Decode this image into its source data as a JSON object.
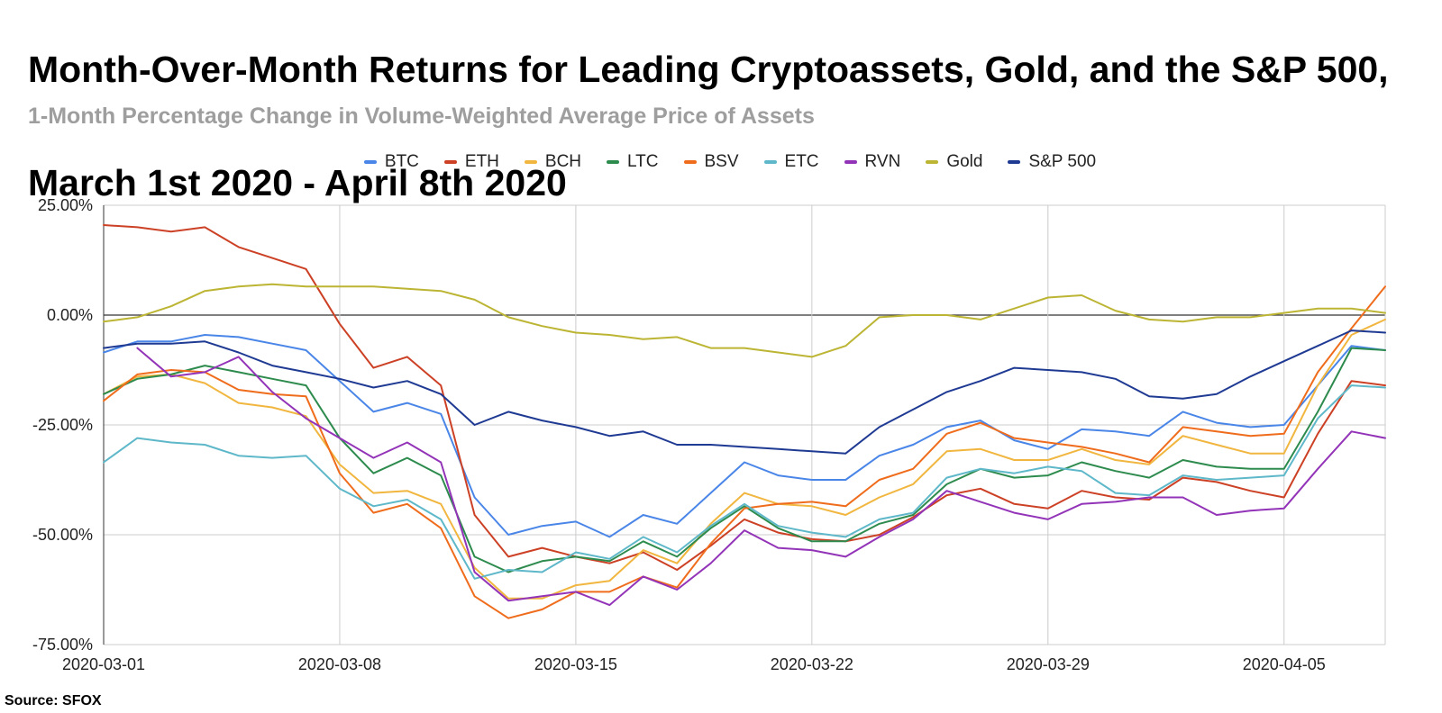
{
  "source": "Source: SFOX",
  "chart_data": {
    "type": "line",
    "title": "Month-Over-Month Returns for Leading Cryptoassets, Gold, and the S&P 500, March 1st 2020 - April 8th 2020",
    "title_lines": [
      "Month-Over-Month Returns for Leading Cryptoassets, Gold, and the S&P 500,",
      "March 1st 2020 - April 8th 2020"
    ],
    "subtitle": "1-Month Percentage Change in Volume-Weighted Average Price of Assets",
    "xlabel": "",
    "ylabel": "",
    "x_start": "2020-03-01",
    "x_end": "2020-04-08",
    "x_tick_labels": [
      "2020-03-01",
      "2020-03-08",
      "2020-03-15",
      "2020-03-22",
      "2020-03-29",
      "2020-04-05"
    ],
    "x_tick_days": [
      0,
      7,
      14,
      21,
      28,
      35
    ],
    "y_ticks": [
      25,
      0,
      -25,
      -50,
      -75
    ],
    "y_tick_labels": [
      "25.00%",
      "0.00%",
      "-25.00%",
      "-50.00%",
      "-75.00%"
    ],
    "ylim": [
      -75,
      25
    ],
    "xlim_days": [
      0,
      38
    ],
    "legend_position": "top-center",
    "grid": true,
    "series": [
      {
        "name": "BTC",
        "color": "#4a86e8",
        "x": [
          0,
          1,
          2,
          3,
          4,
          5,
          6,
          7,
          8,
          9,
          10,
          11,
          12,
          13,
          14,
          15,
          16,
          17,
          18,
          19,
          20,
          21,
          22,
          23,
          24,
          25,
          26,
          27,
          28,
          29,
          30,
          31,
          32,
          33,
          34,
          35,
          36,
          37,
          38
        ],
        "values": [
          -8.5,
          -6,
          -6,
          -4.5,
          -5,
          -6.5,
          -8,
          -15,
          -22,
          -20,
          -22.5,
          -41.5,
          -50,
          -48,
          -47,
          -50.5,
          -45.5,
          -47.5,
          -40.5,
          -33.5,
          -36.5,
          -37.5,
          -37.5,
          -32,
          -29.5,
          -25.5,
          -24,
          -28.5,
          -30.5,
          -26,
          -26.5,
          -27.5,
          -22,
          -24.5,
          -25.5,
          -25,
          -16,
          -7,
          -8
        ]
      },
      {
        "name": "ETH",
        "color": "#cc4125",
        "x": [
          0,
          1,
          2,
          3,
          4,
          5,
          6,
          7,
          8,
          9,
          10,
          11,
          12,
          13,
          14,
          15,
          16,
          17,
          18,
          19,
          20,
          21,
          22,
          23,
          24,
          25,
          26,
          27,
          28,
          29,
          30,
          31,
          32,
          33,
          34,
          35,
          36,
          37,
          38
        ],
        "values": [
          20.5,
          20,
          19,
          20,
          15.5,
          13,
          10.5,
          -2,
          -12,
          -9.5,
          -16,
          -45.5,
          -55,
          -53,
          -55,
          -56.5,
          -54,
          -58,
          -52.5,
          -46.5,
          -49.5,
          -51,
          -51.5,
          -50,
          -46,
          -41,
          -39.5,
          -43,
          -44,
          -40,
          -41.5,
          -42,
          -37,
          -38,
          -40,
          -41.5,
          -27,
          -15,
          -16
        ]
      },
      {
        "name": "BCH",
        "color": "#f1b63f",
        "x": [
          0,
          1,
          2,
          3,
          4,
          5,
          6,
          7,
          8,
          9,
          10,
          11,
          12,
          13,
          14,
          15,
          16,
          17,
          18,
          19,
          20,
          21,
          22,
          23,
          24,
          25,
          26,
          27,
          28,
          29,
          30,
          31,
          32,
          33,
          34,
          35,
          36,
          37,
          38
        ],
        "values": [
          -18,
          -14,
          -13.5,
          -15.5,
          -20,
          -21,
          -23,
          -34,
          -40.5,
          -40,
          -43,
          -57.5,
          -64.5,
          -64.5,
          -61.5,
          -60.5,
          -53.5,
          -56.5,
          -47.5,
          -40.5,
          -43,
          -43.5,
          -45.5,
          -41.5,
          -38.5,
          -31,
          -30.5,
          -33,
          -33,
          -30.5,
          -33,
          -34,
          -27.5,
          -29.5,
          -31.5,
          -31.5,
          -16,
          -4.5,
          -1
        ]
      },
      {
        "name": "LTC",
        "color": "#2e8b4e",
        "x": [
          0,
          1,
          2,
          3,
          4,
          5,
          6,
          7,
          8,
          9,
          10,
          11,
          12,
          13,
          14,
          15,
          16,
          17,
          18,
          19,
          20,
          21,
          22,
          23,
          24,
          25,
          26,
          27,
          28,
          29,
          30,
          31,
          32,
          33,
          34,
          35,
          36,
          37,
          38
        ],
        "values": [
          -18,
          -14.5,
          -13.5,
          -11.5,
          -13,
          -14.5,
          -16,
          -28,
          -36,
          -32.5,
          -36.5,
          -55,
          -58.5,
          -56,
          -55,
          -56,
          -51.5,
          -55,
          -48.5,
          -43.5,
          -48.5,
          -51.5,
          -51.5,
          -47.5,
          -45.5,
          -38.5,
          -35,
          -37,
          -36.5,
          -33.5,
          -35.5,
          -37,
          -33,
          -34.5,
          -35,
          -35,
          -22,
          -7.5,
          -8
        ]
      },
      {
        "name": "BSV",
        "color": "#ef6c1c",
        "x": [
          0,
          1,
          2,
          3,
          4,
          5,
          6,
          7,
          8,
          9,
          10,
          11,
          12,
          13,
          14,
          15,
          16,
          17,
          18,
          19,
          20,
          21,
          22,
          23,
          24,
          25,
          26,
          27,
          28,
          29,
          30,
          31,
          32,
          33,
          34,
          35,
          36,
          37,
          38
        ],
        "values": [
          -19.5,
          -13.5,
          -12.5,
          -13,
          -17,
          -18,
          -18.5,
          -36,
          -45,
          -43,
          -48.5,
          -64,
          -69,
          -67,
          -63,
          -63,
          -59.5,
          -62,
          -52,
          -44,
          -43,
          -42.5,
          -43.5,
          -37.5,
          -35,
          -27,
          -24.5,
          -28,
          -29,
          -30,
          -31.5,
          -33.5,
          -25.5,
          -26.5,
          -27.5,
          -27,
          -13,
          -3,
          6.5
        ]
      },
      {
        "name": "ETC",
        "color": "#5eb8c9",
        "x": [
          0,
          1,
          2,
          3,
          4,
          5,
          6,
          7,
          8,
          9,
          10,
          11,
          12,
          13,
          14,
          15,
          16,
          17,
          18,
          19,
          20,
          21,
          22,
          23,
          24,
          25,
          26,
          27,
          28,
          29,
          30,
          31,
          32,
          33,
          34,
          35,
          36,
          37,
          38
        ],
        "values": [
          -33.5,
          -28,
          -29,
          -29.5,
          -32,
          -32.5,
          -32,
          -39.5,
          -43.5,
          -42,
          -46.5,
          -60,
          -58,
          -58.5,
          -54,
          -55.5,
          -50.5,
          -54,
          -48,
          -43,
          -48,
          -49.5,
          -50.5,
          -46.5,
          -45,
          -37,
          -35,
          -36,
          -34.5,
          -35.5,
          -40.5,
          -41,
          -36.5,
          -37.5,
          -37,
          -36.5,
          -23.5,
          -16,
          -16.5
        ]
      },
      {
        "name": "RVN",
        "color": "#9334b8",
        "x": [
          1,
          2,
          3,
          4,
          5,
          6,
          7,
          8,
          9,
          10,
          11,
          12,
          13,
          14,
          15,
          16,
          17,
          18,
          19,
          20,
          21,
          22,
          23,
          24,
          25,
          26,
          27,
          28,
          29,
          30,
          31,
          32,
          33,
          34,
          35,
          36,
          37,
          38
        ],
        "values": [
          -7.5,
          -14,
          -13,
          -9.5,
          -17.5,
          -23.5,
          -28,
          -32.5,
          -29,
          -33.5,
          -58.5,
          -65,
          -64,
          -63,
          -66,
          -59.5,
          -62.5,
          -56.5,
          -49,
          -53,
          -53.5,
          -55,
          -50.5,
          -46.5,
          -40,
          -42.5,
          -45,
          -46.5,
          -43,
          -42.5,
          -41.5,
          -41.5,
          -45.5,
          -44.5,
          -44,
          -35,
          -26.5,
          -28
        ]
      },
      {
        "name": "Gold",
        "color": "#bcb534",
        "x": [
          0,
          1,
          2,
          3,
          4,
          5,
          6,
          7,
          8,
          9,
          10,
          11,
          12,
          13,
          14,
          15,
          16,
          17,
          18,
          19,
          20,
          21,
          22,
          23,
          24,
          25,
          26,
          27,
          28,
          29,
          30,
          31,
          32,
          33,
          34,
          35,
          36,
          37,
          38
        ],
        "values": [
          -1.5,
          -0.5,
          2,
          5.5,
          6.5,
          7,
          6.5,
          6.5,
          6.5,
          6,
          5.5,
          3.5,
          -0.5,
          -2.5,
          -4,
          -4.5,
          -5.5,
          -5,
          -7.5,
          -7.5,
          -8.5,
          -9.5,
          -7,
          -0.5,
          0,
          0,
          -1,
          1.5,
          4,
          4.5,
          1,
          -1,
          -1.5,
          -0.5,
          -0.5,
          0.5,
          1.5,
          1.5,
          0.5
        ]
      },
      {
        "name": "S&P 500",
        "color": "#1f3a93",
        "x": [
          0,
          1,
          2,
          3,
          4,
          5,
          6,
          7,
          8,
          9,
          10,
          11,
          12,
          13,
          14,
          15,
          16,
          17,
          18,
          19,
          20,
          21,
          22,
          23,
          24,
          25,
          26,
          27,
          28,
          29,
          30,
          31,
          32,
          33,
          34,
          35,
          36,
          37,
          38
        ],
        "values": [
          -7.5,
          -6.5,
          -6.5,
          -6,
          -8.5,
          -11.5,
          -13,
          -14.5,
          -16.5,
          -15,
          -18,
          -25,
          -22,
          -24,
          -25.5,
          -27.5,
          -26.5,
          -29.5,
          -29.5,
          -30,
          -30.5,
          -31,
          -31.5,
          -25.5,
          -21.5,
          -17.5,
          -15,
          -12,
          -12.5,
          -13,
          -14.5,
          -18.5,
          -19,
          -18,
          -14,
          -10.5,
          -7,
          -3.5,
          -4
        ]
      }
    ]
  }
}
